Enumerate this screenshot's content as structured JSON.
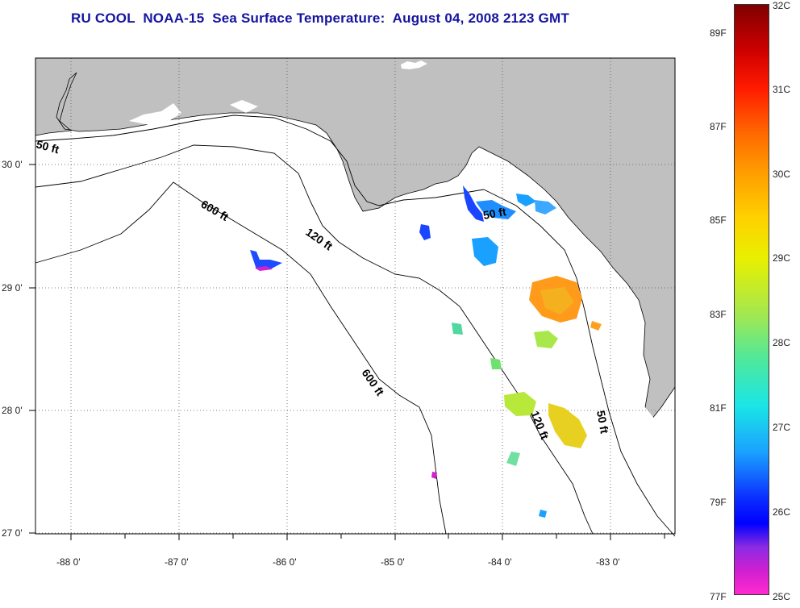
{
  "title": "RU COOL  NOAA-15  Sea Surface Temperature:  August 04, 2008 2123 GMT",
  "map": {
    "lon_labels": [
      "-88 0'",
      "-87 0'",
      "-86 0'",
      "-85 0'",
      "-84 0'",
      "-83 0'"
    ],
    "lat_labels": [
      "30 0'",
      "29 0'",
      "28 0'",
      "27 0'"
    ],
    "contour_labels": [
      {
        "text": "50 ft",
        "angle": 15
      },
      {
        "text": "600 ft",
        "angle": 30
      },
      {
        "text": "120 ft",
        "angle": 35
      },
      {
        "text": "50 ft",
        "angle": -10
      },
      {
        "text": "600 ft",
        "angle": 55
      },
      {
        "text": "120 ft",
        "angle": 68
      },
      {
        "text": "50 ft",
        "angle": 80
      }
    ],
    "land_color": "#c0c0c0",
    "water_color": "#ffffff"
  },
  "colorbar": {
    "celsius_labels": [
      "32C",
      "31C",
      "30C",
      "29C",
      "28C",
      "27C",
      "26C",
      "25C"
    ],
    "fahrenheit_labels": [
      "89F",
      "87F",
      "85F",
      "83F",
      "81F",
      "79F",
      "77F"
    ]
  }
}
